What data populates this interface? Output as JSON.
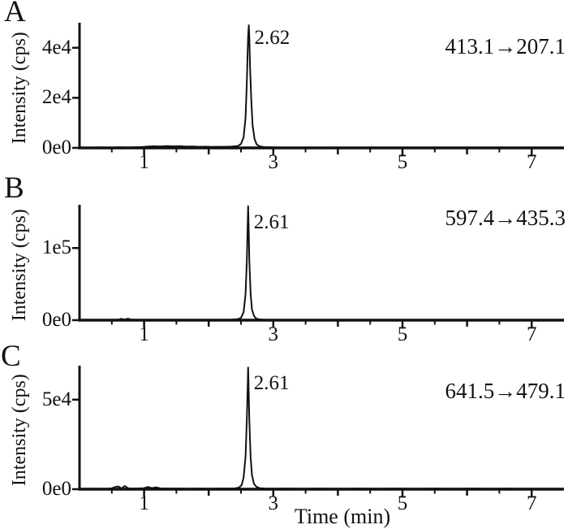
{
  "figure": {
    "xlabel": "Time (min)",
    "ylabel": "Intensity (cps)",
    "background_color": "#ffffff",
    "line_color": "#111111"
  },
  "chart_data": [
    {
      "type": "line",
      "panel": "A",
      "transition_label": "413.1→207.1",
      "peak_label": "2.62",
      "peak_rt_min": 2.62,
      "ylabel": "Intensity (cps)",
      "xlabel": "Time (min)",
      "xlim": [
        0,
        7.5
      ],
      "ylim": [
        0,
        50000
      ],
      "legend": "none",
      "grid": false,
      "yticks": [
        {
          "value": 0,
          "label": "0e0"
        },
        {
          "value": 20000,
          "label": "2e4"
        },
        {
          "value": 40000,
          "label": "4e4"
        }
      ],
      "xticks": [
        {
          "value": 1,
          "label": "1"
        },
        {
          "value": 3,
          "label": "3"
        },
        {
          "value": 5,
          "label": "5"
        },
        {
          "value": 7,
          "label": "7"
        }
      ],
      "xticks_medium": [
        2,
        4,
        6
      ],
      "xticks_small": [
        0.5,
        1.5,
        2.5,
        3.5,
        4.5,
        5.5,
        6.5
      ],
      "points": [
        [
          0.05,
          150
        ],
        [
          0.2,
          120
        ],
        [
          0.35,
          180
        ],
        [
          0.5,
          140
        ],
        [
          0.62,
          220
        ],
        [
          0.75,
          170
        ],
        [
          0.85,
          260
        ],
        [
          0.95,
          320
        ],
        [
          1.05,
          520
        ],
        [
          1.15,
          640
        ],
        [
          1.25,
          560
        ],
        [
          1.35,
          700
        ],
        [
          1.45,
          620
        ],
        [
          1.55,
          680
        ],
        [
          1.65,
          520
        ],
        [
          1.75,
          560
        ],
        [
          1.85,
          440
        ],
        [
          1.95,
          480
        ],
        [
          2.05,
          400
        ],
        [
          2.15,
          440
        ],
        [
          2.25,
          470
        ],
        [
          2.35,
          520
        ],
        [
          2.45,
          750
        ],
        [
          2.5,
          1600
        ],
        [
          2.54,
          4200
        ],
        [
          2.57,
          12000
        ],
        [
          2.59,
          26000
        ],
        [
          2.6,
          36000
        ],
        [
          2.61,
          44500
        ],
        [
          2.62,
          49000
        ],
        [
          2.63,
          44000
        ],
        [
          2.64,
          33000
        ],
        [
          2.66,
          19000
        ],
        [
          2.68,
          9000
        ],
        [
          2.71,
          3600
        ],
        [
          2.74,
          1500
        ],
        [
          2.78,
          700
        ],
        [
          2.85,
          320
        ],
        [
          2.95,
          220
        ],
        [
          3.1,
          160
        ],
        [
          3.3,
          130
        ],
        [
          3.6,
          160
        ],
        [
          3.9,
          120
        ],
        [
          4.2,
          150
        ],
        [
          4.5,
          120
        ],
        [
          4.8,
          150
        ],
        [
          5.1,
          120
        ],
        [
          5.4,
          150
        ],
        [
          5.7,
          120
        ],
        [
          6.0,
          150
        ],
        [
          6.3,
          120
        ],
        [
          6.6,
          150
        ],
        [
          6.9,
          120
        ],
        [
          7.2,
          140
        ],
        [
          7.45,
          120
        ]
      ]
    },
    {
      "type": "line",
      "panel": "B",
      "transition_label": "597.4→435.3",
      "peak_label": "2.61",
      "peak_rt_min": 2.61,
      "ylabel": "Intensity (cps)",
      "xlabel": "Time (min)",
      "xlim": [
        0,
        7.5
      ],
      "ylim": [
        0,
        160000
      ],
      "legend": "none",
      "grid": false,
      "yticks": [
        {
          "value": 0,
          "label": "0e0"
        },
        {
          "value": 100000,
          "label": "1e5"
        }
      ],
      "xticks": [
        {
          "value": 1,
          "label": "1"
        },
        {
          "value": 3,
          "label": "3"
        },
        {
          "value": 5,
          "label": "5"
        },
        {
          "value": 7,
          "label": "7"
        }
      ],
      "xticks_medium": [
        2,
        4,
        6
      ],
      "xticks_small": [
        0.5,
        1.5,
        2.5,
        3.5,
        4.5,
        5.5,
        6.5
      ],
      "points": [
        [
          0.05,
          350
        ],
        [
          0.2,
          420
        ],
        [
          0.35,
          330
        ],
        [
          0.5,
          450
        ],
        [
          0.6,
          600
        ],
        [
          0.65,
          1900
        ],
        [
          0.7,
          800
        ],
        [
          0.75,
          2100
        ],
        [
          0.8,
          700
        ],
        [
          0.9,
          480
        ],
        [
          1.0,
          560
        ],
        [
          1.15,
          450
        ],
        [
          1.3,
          560
        ],
        [
          1.45,
          470
        ],
        [
          1.6,
          550
        ],
        [
          1.75,
          460
        ],
        [
          1.9,
          540
        ],
        [
          2.05,
          460
        ],
        [
          2.2,
          540
        ],
        [
          2.35,
          650
        ],
        [
          2.45,
          1300
        ],
        [
          2.5,
          3200
        ],
        [
          2.54,
          11000
        ],
        [
          2.57,
          36000
        ],
        [
          2.59,
          82000
        ],
        [
          2.6,
          121000
        ],
        [
          2.61,
          158000
        ],
        [
          2.62,
          122000
        ],
        [
          2.63,
          81000
        ],
        [
          2.65,
          36000
        ],
        [
          2.67,
          15000
        ],
        [
          2.7,
          6200
        ],
        [
          2.73,
          2600
        ],
        [
          2.77,
          1200
        ],
        [
          2.83,
          700
        ],
        [
          2.92,
          500
        ],
        [
          3.05,
          420
        ],
        [
          3.25,
          500
        ],
        [
          3.5,
          410
        ],
        [
          3.8,
          480
        ],
        [
          4.1,
          400
        ],
        [
          4.4,
          480
        ],
        [
          4.7,
          400
        ],
        [
          5.0,
          470
        ],
        [
          5.3,
          400
        ],
        [
          5.6,
          460
        ],
        [
          5.9,
          400
        ],
        [
          6.2,
          460
        ],
        [
          6.5,
          400
        ],
        [
          6.8,
          450
        ],
        [
          7.1,
          400
        ],
        [
          7.45,
          420
        ]
      ]
    },
    {
      "type": "line",
      "panel": "C",
      "transition_label": "641.5→479.1",
      "peak_label": "2.61",
      "peak_rt_min": 2.61,
      "ylabel": "Intensity (cps)",
      "xlabel": "Time (min)",
      "xlim": [
        0,
        7.5
      ],
      "ylim": [
        0,
        69000
      ],
      "legend": "none",
      "grid": false,
      "yticks": [
        {
          "value": 0,
          "label": "0e0"
        },
        {
          "value": 50000,
          "label": "5e4"
        }
      ],
      "xticks": [
        {
          "value": 1,
          "label": "1"
        },
        {
          "value": 3,
          "label": "3"
        },
        {
          "value": 5,
          "label": "5"
        },
        {
          "value": 7,
          "label": "7"
        }
      ],
      "xticks_medium": [
        2,
        4,
        6
      ],
      "xticks_small": [
        0.5,
        1.5,
        2.5,
        3.5,
        4.5,
        5.5,
        6.5
      ],
      "points": [
        [
          0.05,
          220
        ],
        [
          0.2,
          260
        ],
        [
          0.35,
          210
        ],
        [
          0.48,
          300
        ],
        [
          0.56,
          1250
        ],
        [
          0.6,
          1550
        ],
        [
          0.65,
          420
        ],
        [
          0.7,
          1750
        ],
        [
          0.76,
          430
        ],
        [
          0.88,
          300
        ],
        [
          1.0,
          600
        ],
        [
          1.06,
          1250
        ],
        [
          1.12,
          600
        ],
        [
          1.18,
          1050
        ],
        [
          1.26,
          420
        ],
        [
          1.4,
          300
        ],
        [
          1.55,
          340
        ],
        [
          1.7,
          290
        ],
        [
          1.85,
          340
        ],
        [
          2.0,
          290
        ],
        [
          2.15,
          340
        ],
        [
          2.3,
          300
        ],
        [
          2.4,
          420
        ],
        [
          2.47,
          900
        ],
        [
          2.51,
          2300
        ],
        [
          2.54,
          6500
        ],
        [
          2.57,
          18000
        ],
        [
          2.59,
          39000
        ],
        [
          2.6,
          53000
        ],
        [
          2.61,
          68000
        ],
        [
          2.62,
          52000
        ],
        [
          2.63,
          38000
        ],
        [
          2.65,
          17500
        ],
        [
          2.67,
          8000
        ],
        [
          2.7,
          3100
        ],
        [
          2.74,
          1300
        ],
        [
          2.79,
          600
        ],
        [
          2.88,
          320
        ],
        [
          3.0,
          260
        ],
        [
          3.2,
          300
        ],
        [
          3.45,
          250
        ],
        [
          3.7,
          300
        ],
        [
          4.0,
          250
        ],
        [
          4.3,
          300
        ],
        [
          4.6,
          250
        ],
        [
          4.9,
          300
        ],
        [
          5.2,
          250
        ],
        [
          5.5,
          300
        ],
        [
          5.8,
          250
        ],
        [
          6.1,
          300
        ],
        [
          6.4,
          250
        ],
        [
          6.7,
          300
        ],
        [
          7.0,
          250
        ],
        [
          7.3,
          290
        ],
        [
          7.45,
          260
        ]
      ]
    }
  ]
}
